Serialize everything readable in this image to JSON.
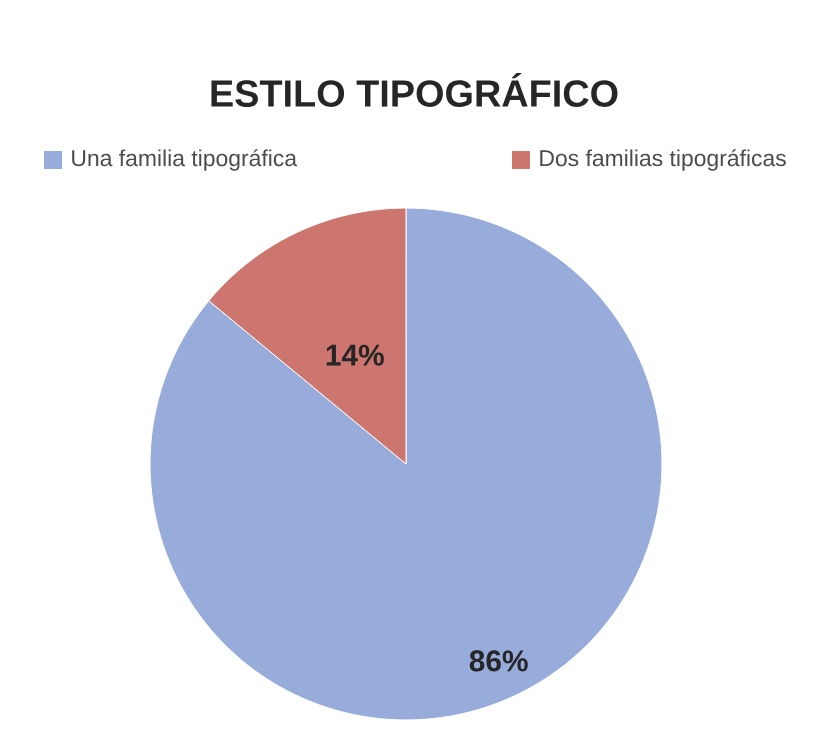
{
  "chart_data": {
    "type": "pie",
    "title": "ESTILO TIPOGRÁFICO",
    "categories": [
      "Una familia tipográfica",
      "Dos familias tipográficas"
    ],
    "values": [
      86,
      14
    ],
    "colors": [
      "#98acdb",
      "#cd766f"
    ],
    "value_labels": [
      "86%",
      "14%"
    ],
    "legend": "top"
  }
}
